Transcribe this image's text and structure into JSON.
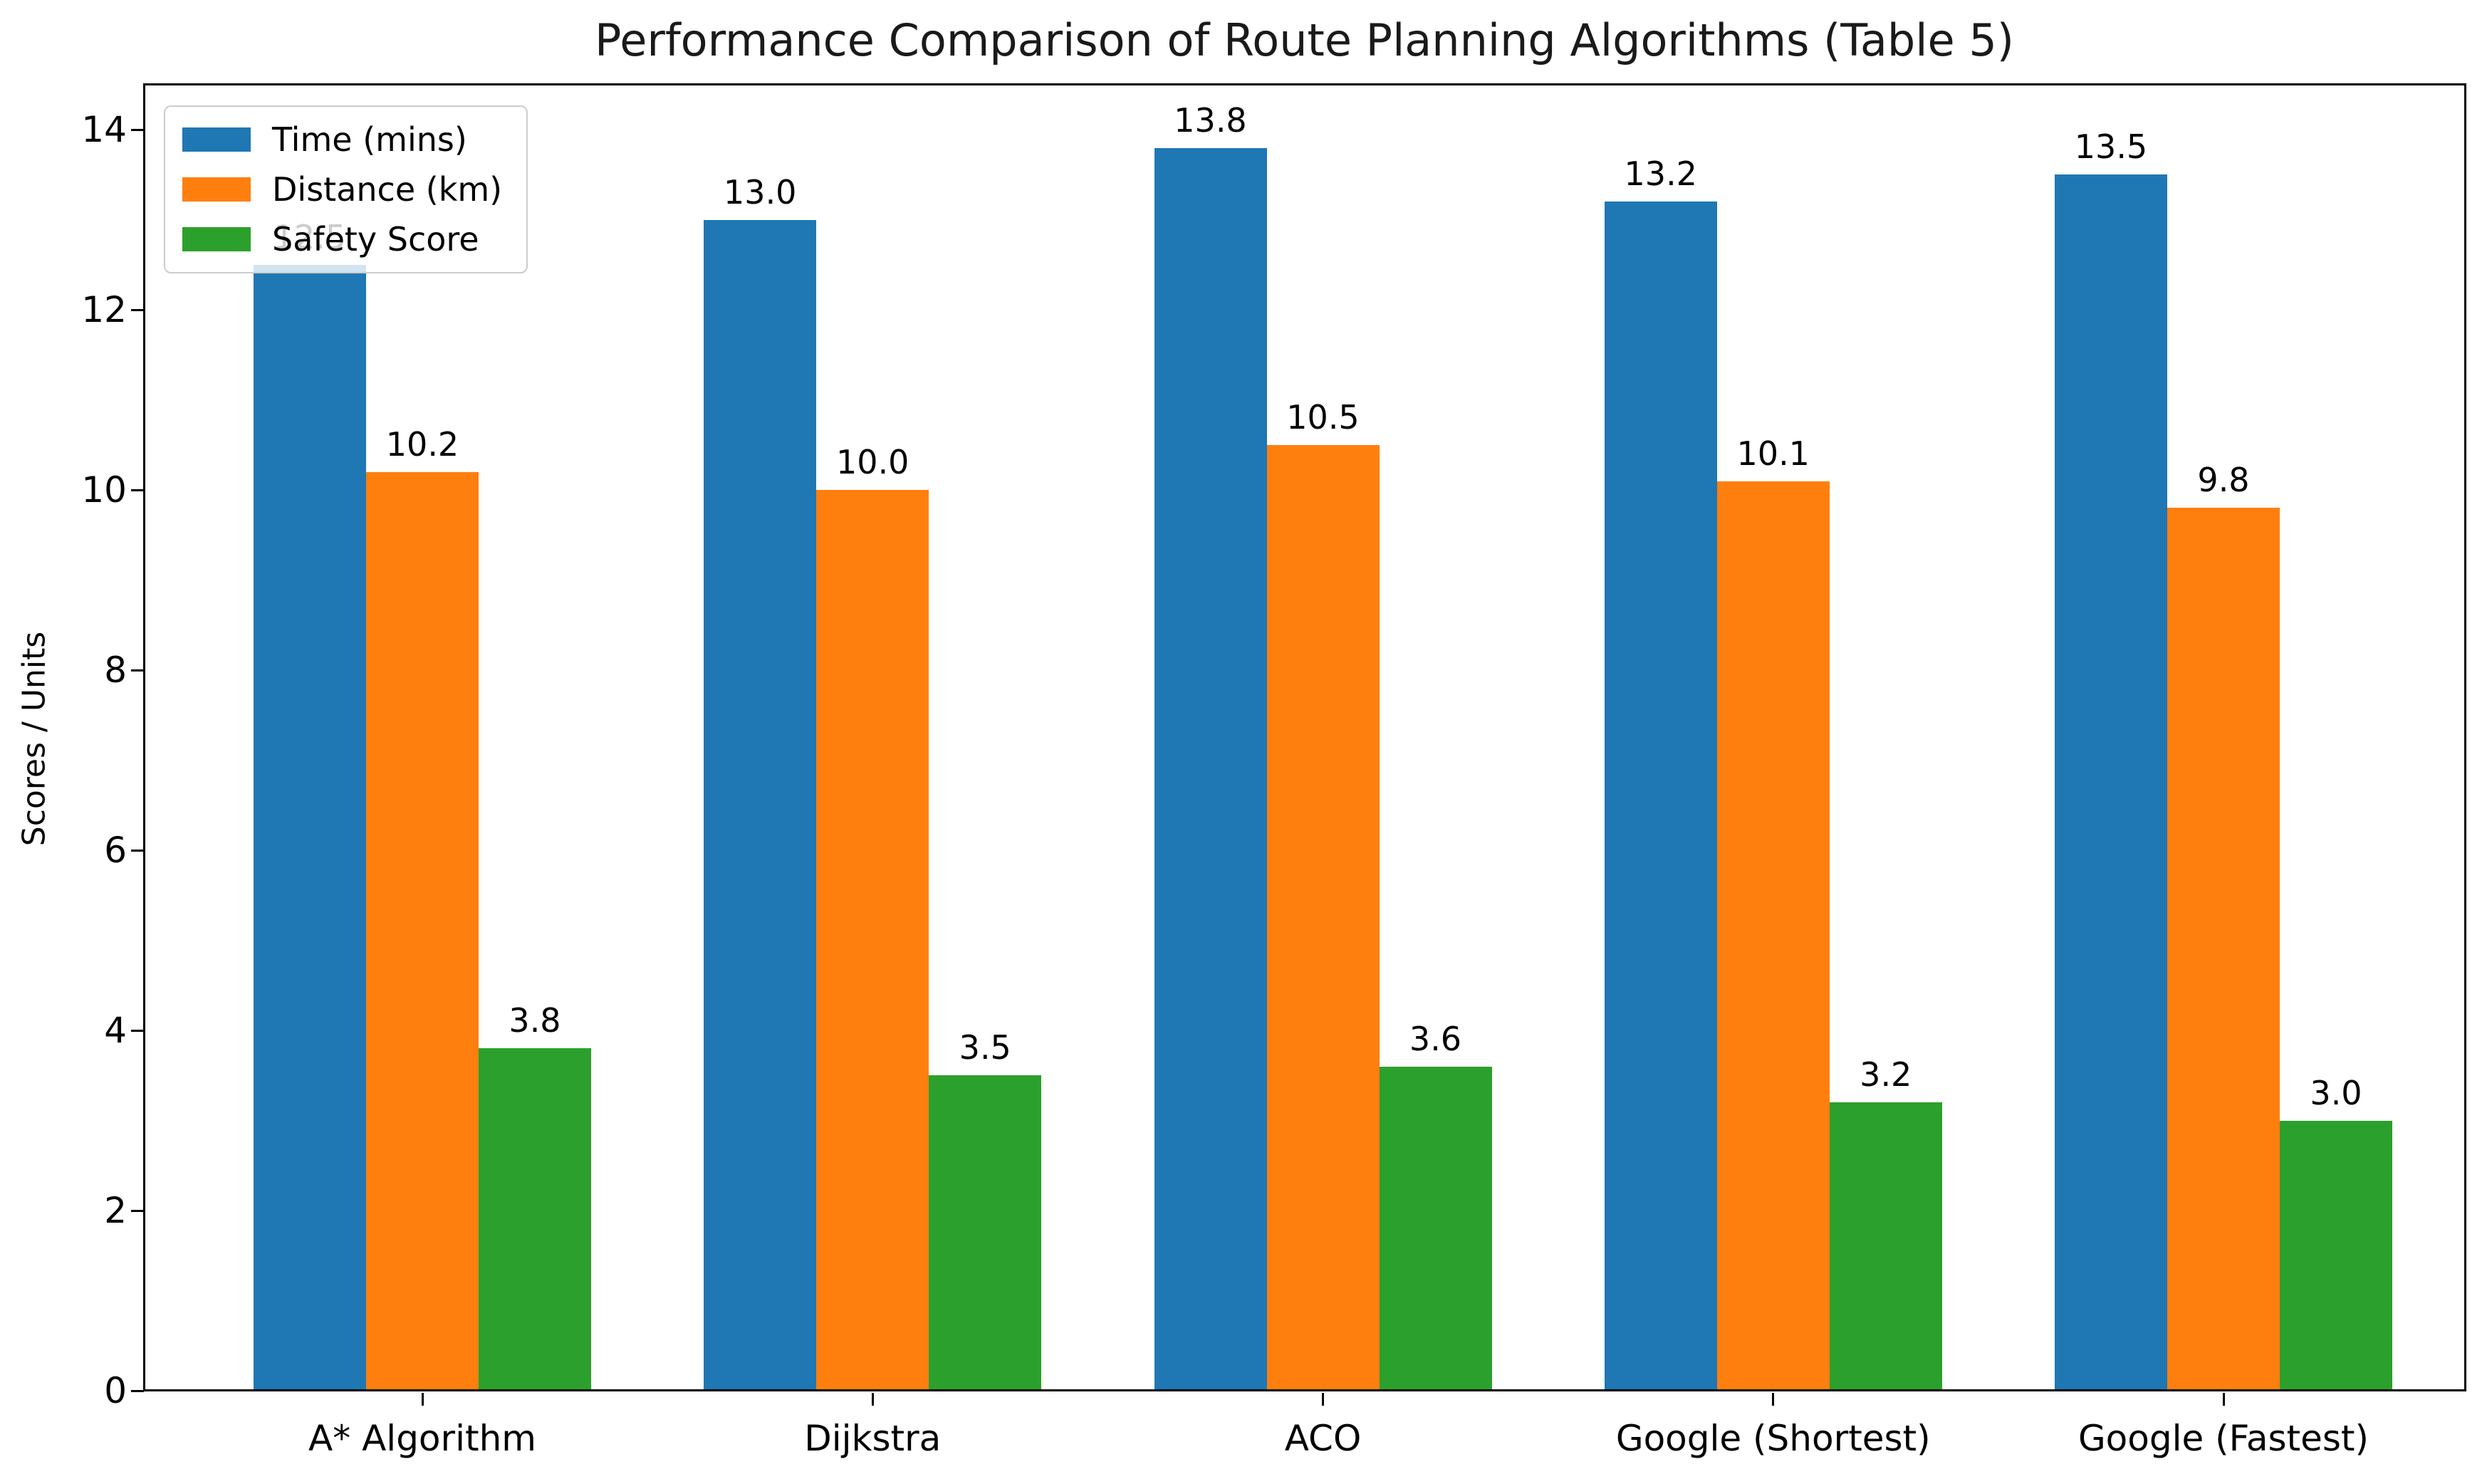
{
  "window": {
    "background_color": "#ffffff"
  },
  "chart_data": {
    "type": "bar",
    "title": "Performance Comparison of Route Planning Algorithms (Table 5)",
    "xlabel": "",
    "ylabel": "Scores / Units",
    "categories": [
      "A* Algorithm",
      "Dijkstra",
      "ACO",
      "Google (Shortest)",
      "Google (Fastest)"
    ],
    "series": [
      {
        "name": "Time (mins)",
        "color": "#1f77b4",
        "values": [
          12.5,
          13.0,
          13.8,
          13.2,
          13.5
        ]
      },
      {
        "name": "Distance (km)",
        "color": "#ff7f0e",
        "values": [
          10.2,
          10.0,
          10.5,
          10.1,
          9.8
        ]
      },
      {
        "name": "Safety Score",
        "color": "#2ca02c",
        "values": [
          3.8,
          3.5,
          3.6,
          3.2,
          3.0
        ]
      }
    ],
    "bar_value_labels": [
      [
        "12.5",
        "13.0",
        "13.8",
        "13.2",
        "13.5"
      ],
      [
        "10.2",
        "10.0",
        "10.5",
        "10.1",
        "9.8"
      ],
      [
        "3.8",
        "3.5",
        "3.6",
        "3.2",
        "3.0"
      ]
    ],
    "note_first_time_label_hidden_behind_legend": true,
    "y_ticks": [
      "0",
      "2",
      "4",
      "6",
      "8",
      "10",
      "12",
      "14"
    ],
    "ylim": [
      0,
      14.5
    ],
    "grid": false,
    "legend_position": "upper left",
    "axis_color": "#000000",
    "text_color": "#000000"
  }
}
